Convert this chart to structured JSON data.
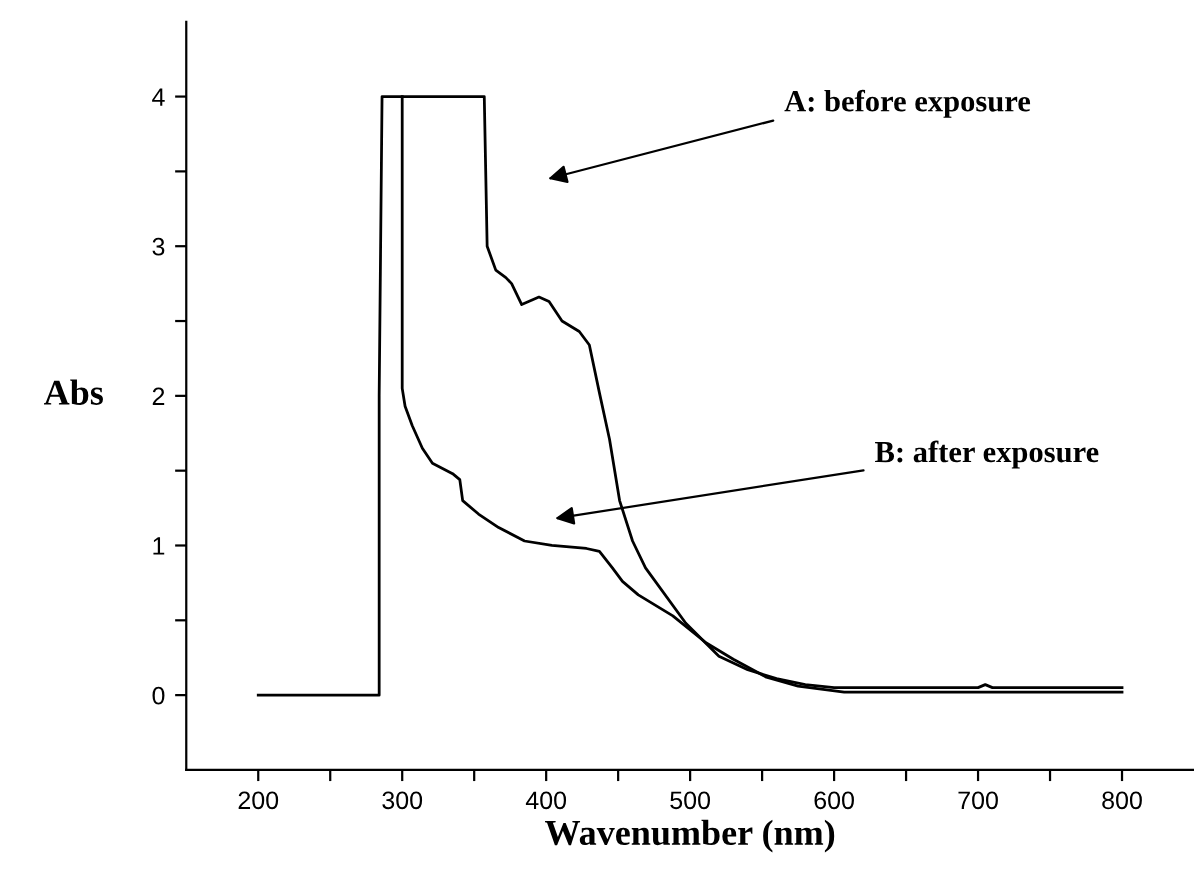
{
  "chart_data": {
    "type": "line",
    "xlabel": "Wavenumber (nm)",
    "ylabel": "Abs",
    "xlim": [
      150,
      850
    ],
    "ylim": [
      -0.5,
      4.5
    ],
    "xticks": [
      {
        "value": 200,
        "label": "200"
      },
      {
        "value": 250,
        "label": null
      },
      {
        "value": 300,
        "label": "300"
      },
      {
        "value": 350,
        "label": null
      },
      {
        "value": 400,
        "label": "400"
      },
      {
        "value": 450,
        "label": null
      },
      {
        "value": 500,
        "label": "500"
      },
      {
        "value": 550,
        "label": null
      },
      {
        "value": 600,
        "label": "600"
      },
      {
        "value": 650,
        "label": null
      },
      {
        "value": 700,
        "label": "700"
      },
      {
        "value": 750,
        "label": null
      },
      {
        "value": 800,
        "label": "800"
      }
    ],
    "yticks": [
      {
        "value": 0,
        "label": "0"
      },
      {
        "value": 0.5,
        "label": null
      },
      {
        "value": 1,
        "label": "1"
      },
      {
        "value": 1.5,
        "label": null
      },
      {
        "value": 2,
        "label": "2"
      },
      {
        "value": 2.5,
        "label": null
      },
      {
        "value": 3,
        "label": "3"
      },
      {
        "value": 3.5,
        "label": null
      },
      {
        "value": 4,
        "label": "4"
      }
    ],
    "grid": false,
    "legend": false,
    "marker": "none",
    "line_style": "solid",
    "series": [
      {
        "color": "#000000",
        "x": [
          200,
          284,
          284,
          286,
          357,
          358,
          359,
          365,
          372,
          376,
          383,
          395,
          402,
          411,
          423,
          430,
          437,
          444,
          451,
          460,
          469,
          497,
          520,
          540,
          560,
          580,
          600,
          700,
          705,
          710,
          800
        ],
        "values": [
          0,
          0,
          2.0,
          4,
          4,
          3.5,
          3.0,
          2.84,
          2.79,
          2.75,
          2.61,
          2.66,
          2.63,
          2.5,
          2.43,
          2.34,
          2.02,
          1.71,
          1.3,
          1.03,
          0.85,
          0.48,
          0.26,
          0.17,
          0.11,
          0.07,
          0.05,
          0.05,
          0.07,
          0.05,
          0.05
        ]
      },
      {
        "color": "#000000",
        "x": [
          300,
          300,
          302,
          307,
          314,
          321,
          335,
          340,
          342,
          353,
          367,
          385,
          404,
          428,
          437,
          446,
          453,
          464,
          488,
          511,
          530,
          553,
          575,
          607,
          700,
          800
        ],
        "values": [
          4,
          2.05,
          1.93,
          1.8,
          1.65,
          1.55,
          1.48,
          1.44,
          1.3,
          1.21,
          1.12,
          1.03,
          1.0,
          0.98,
          0.96,
          0.85,
          0.76,
          0.67,
          0.53,
          0.35,
          0.24,
          0.12,
          0.06,
          0.02,
          0.02,
          0.02
        ]
      }
    ],
    "annotations": [
      "A: before exposure",
      "B: after exposure"
    ]
  }
}
